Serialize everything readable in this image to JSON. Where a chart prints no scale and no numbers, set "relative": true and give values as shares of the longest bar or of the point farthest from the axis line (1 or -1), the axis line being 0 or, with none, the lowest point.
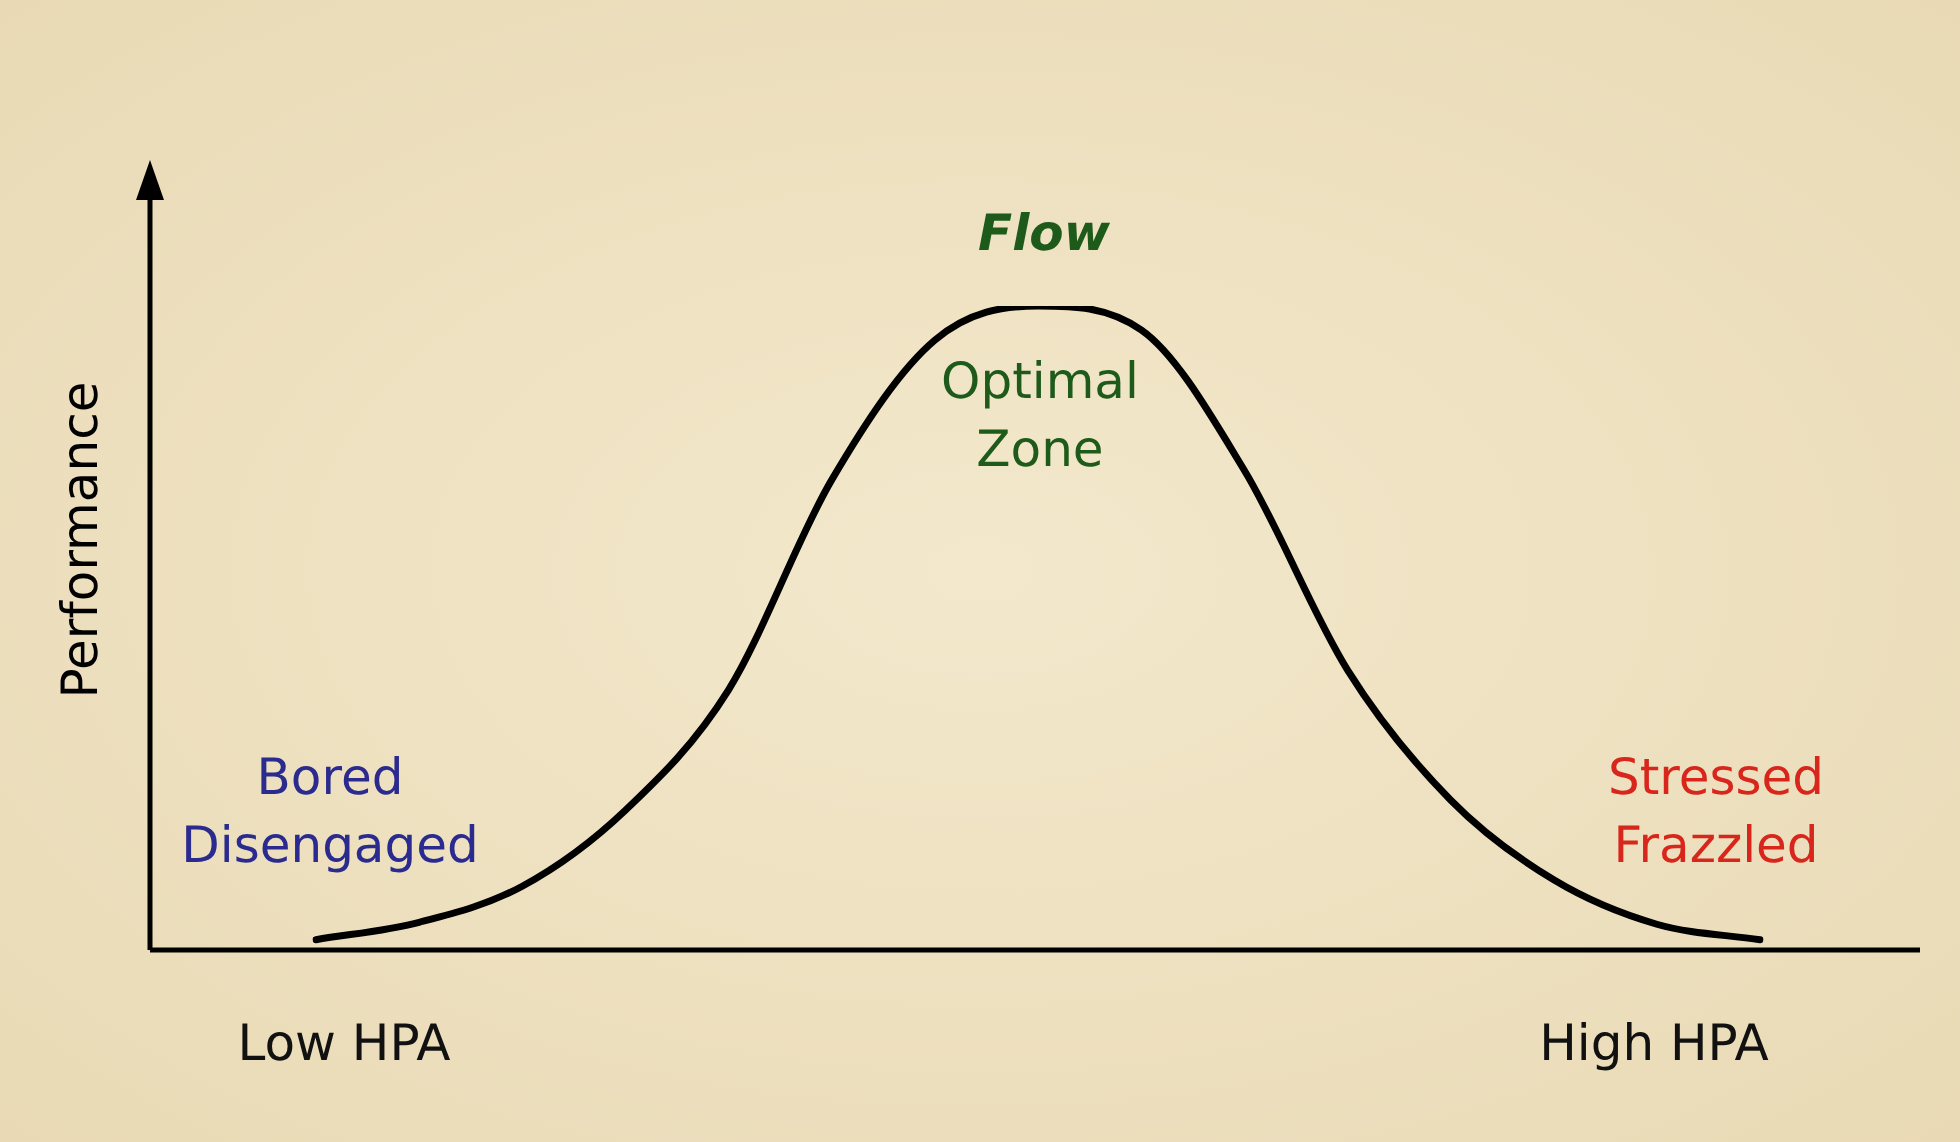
{
  "chart_data": {
    "type": "line",
    "relative": true,
    "ylabel": "Performance",
    "categories": [
      null,
      null,
      null,
      null,
      null,
      null,
      null,
      null,
      null,
      null,
      null,
      null,
      null,
      null,
      null
    ],
    "series": [
      {
        "color": "#000000",
        "values": [
          0.016,
          0.043,
          0.099,
          0.217,
          0.404,
          0.73,
          0.947,
          1,
          0.963,
          0.745,
          0.435,
          0.233,
          0.109,
          0.04,
          0.016
        ]
      }
    ],
    "annotations": [
      "Flow",
      "Optimal Zone",
      "Bored Disengaged",
      "Stressed Frazzled",
      "Low HPA",
      "High HPA"
    ],
    "legend": false,
    "marker": "none",
    "line_style": "solid"
  }
}
